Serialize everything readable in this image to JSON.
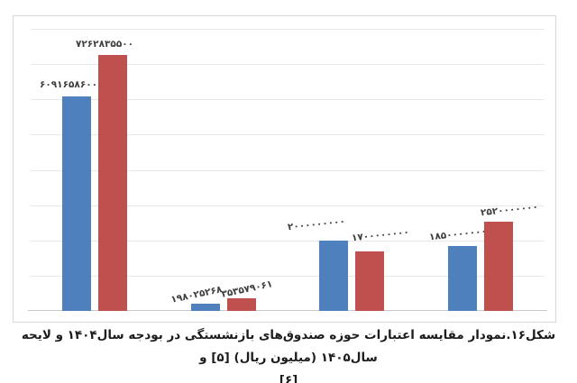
{
  "figure": {
    "caption_line1": "شکل۱۶.نمودار مقایسه اعتبارات حوزه صندوق‌های بازنشستگی در بودجه سال۱۴۰۴ و لایحه سال۱۴۰۵ (میلیون ریال) [۵] و",
    "caption_line2": "[۶]"
  },
  "chart_data": {
    "type": "bar",
    "title": "",
    "categories": [
      "",
      "",
      "",
      ""
    ],
    "series": [
      {
        "name": "بودجه سال ۱۴۰۴",
        "color": "#4E80BD",
        "values": [
          6091658600,
          198025268,
          2000000000,
          1850000000
        ],
        "labels": [
          "۶۰۹۱۶۵۸۶۰۰",
          "۱۹۸۰۲۵۲۶۸",
          "۲۰۰۰۰۰۰۰۰۰",
          "۱۸۵۰۰۰۰۰۰۰"
        ]
      },
      {
        "name": "لایحه سال ۱۴۰۵",
        "color": "#C0504D",
        "values": [
          7262835500,
          353579061,
          1700000000,
          2520000000
        ],
        "labels": [
          "۷۲۶۲۸۳۵۵۰۰",
          "۳۵۳۵۷۹۰۶۱",
          "۱۷۰۰۰۰۰۰۰۰",
          "۲۵۲۰۰۰۰۰۰۰"
        ]
      }
    ],
    "ylim": [
      0,
      8000000000
    ],
    "gridline_step": 1000000000,
    "grid": true,
    "legend": "none",
    "xlabel": "",
    "ylabel": "",
    "axis_tick_labels": "none"
  }
}
